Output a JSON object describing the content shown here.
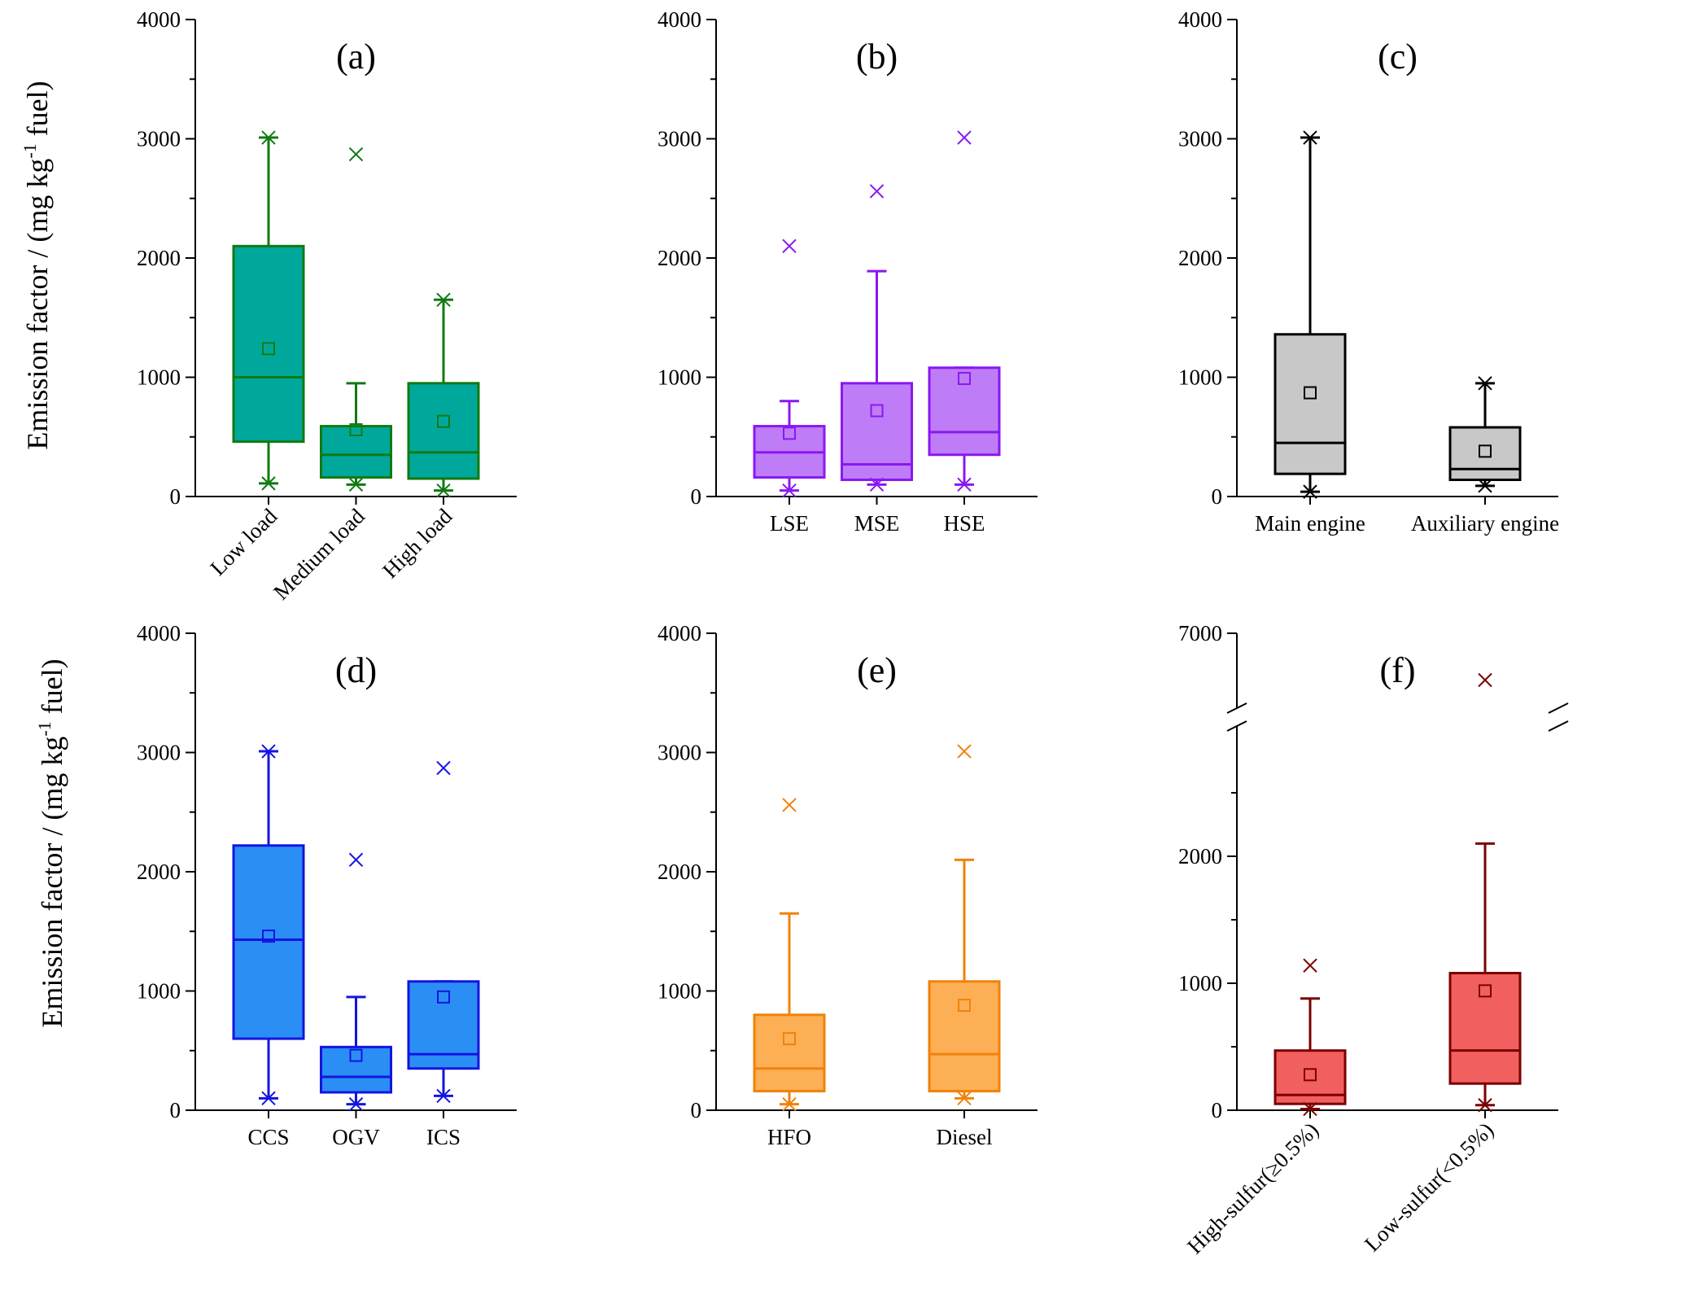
{
  "y_label": {
    "prefix": "Emission factor / (mg kg",
    "sup": "-1",
    "suffix": " fuel)"
  },
  "chart_data": [
    {
      "type": "box",
      "panel": "(a)",
      "color": "#117a11",
      "fill": "#00a89b",
      "ylim": [
        0,
        4000
      ],
      "yticks": [
        "0",
        "1000",
        "2000",
        "3000",
        "4000"
      ],
      "ytick_values": [
        0,
        1000,
        2000,
        3000,
        4000
      ],
      "rotate_labels": true,
      "boxes": [
        {
          "label": "Low load",
          "whisker_low": 110,
          "q1": 460,
          "median": 1000,
          "q3": 2100,
          "whisker_high": 3010,
          "mean": 1240,
          "min_marker": 110,
          "max_marker": 3010,
          "outliers": []
        },
        {
          "label": "Medium load",
          "whisker_low": 100,
          "q1": 160,
          "median": 350,
          "q3": 590,
          "whisker_high": 950,
          "mean": 560,
          "min_marker": 100,
          "max_marker": null,
          "outliers": [
            2870
          ]
        },
        {
          "label": "High load",
          "whisker_low": 50,
          "q1": 150,
          "median": 370,
          "q3": 950,
          "whisker_high": 1650,
          "mean": 630,
          "min_marker": 50,
          "max_marker": 1650,
          "outliers": []
        }
      ]
    },
    {
      "type": "box",
      "panel": "(b)",
      "color": "#8a18f0",
      "fill": "#bf7cf7",
      "ylim": [
        0,
        4000
      ],
      "yticks": [
        "0",
        "1000",
        "2000",
        "3000",
        "4000"
      ],
      "ytick_values": [
        0,
        1000,
        2000,
        3000,
        4000
      ],
      "rotate_labels": false,
      "boxes": [
        {
          "label": "LSE",
          "whisker_low": 50,
          "q1": 160,
          "median": 370,
          "q3": 590,
          "whisker_high": 800,
          "mean": 530,
          "min_marker": 50,
          "max_marker": null,
          "outliers": [
            2100
          ]
        },
        {
          "label": "MSE",
          "whisker_low": 100,
          "q1": 140,
          "median": 270,
          "q3": 950,
          "whisker_high": 1890,
          "mean": 720,
          "min_marker": 100,
          "max_marker": null,
          "outliers": [
            2560
          ]
        },
        {
          "label": "HSE",
          "whisker_low": 100,
          "q1": 350,
          "median": 540,
          "q3": 1080,
          "whisker_high": 1080,
          "mean": 990,
          "min_marker": 100,
          "max_marker": null,
          "outliers": [
            3010
          ]
        }
      ]
    },
    {
      "type": "box",
      "panel": "(c)",
      "color": "#000000",
      "fill": "#c8c8c8",
      "ylim": [
        0,
        4000
      ],
      "yticks": [
        "0",
        "1000",
        "2000",
        "3000",
        "4000"
      ],
      "ytick_values": [
        0,
        1000,
        2000,
        3000,
        4000
      ],
      "rotate_labels": false,
      "boxes": [
        {
          "label": "Main engine",
          "whisker_low": 40,
          "q1": 190,
          "median": 450,
          "q3": 1360,
          "whisker_high": 3010,
          "mean": 870,
          "min_marker": 40,
          "max_marker": 3010,
          "outliers": []
        },
        {
          "label": "Auxiliary engine",
          "whisker_low": 90,
          "q1": 140,
          "median": 230,
          "q3": 580,
          "whisker_high": 950,
          "mean": 380,
          "min_marker": 90,
          "max_marker": 950,
          "outliers": []
        }
      ]
    },
    {
      "type": "box",
      "panel": "(d)",
      "color": "#1414e0",
      "fill": "#2b8ef5",
      "ylim": [
        0,
        4000
      ],
      "yticks": [
        "0",
        "1000",
        "2000",
        "3000",
        "4000"
      ],
      "ytick_values": [
        0,
        1000,
        2000,
        3000,
        4000
      ],
      "rotate_labels": false,
      "boxes": [
        {
          "label": "CCS",
          "whisker_low": 100,
          "q1": 600,
          "median": 1430,
          "q3": 2220,
          "whisker_high": 3010,
          "mean": 1460,
          "min_marker": 100,
          "max_marker": 3010,
          "outliers": []
        },
        {
          "label": "OGV",
          "whisker_low": 50,
          "q1": 150,
          "median": 280,
          "q3": 530,
          "whisker_high": 950,
          "mean": 460,
          "min_marker": 50,
          "max_marker": null,
          "outliers": [
            2100
          ]
        },
        {
          "label": "ICS",
          "whisker_low": 120,
          "q1": 350,
          "median": 470,
          "q3": 1080,
          "whisker_high": 1080,
          "mean": 950,
          "min_marker": 120,
          "max_marker": null,
          "outliers": [
            2870
          ]
        }
      ]
    },
    {
      "type": "box",
      "panel": "(e)",
      "color": "#f0820a",
      "fill": "#fdaf55",
      "ylim": [
        0,
        4000
      ],
      "yticks": [
        "0",
        "1000",
        "2000",
        "3000",
        "4000"
      ],
      "ytick_values": [
        0,
        1000,
        2000,
        3000,
        4000
      ],
      "rotate_labels": false,
      "boxes": [
        {
          "label": "HFO",
          "whisker_low": 50,
          "q1": 160,
          "median": 350,
          "q3": 800,
          "whisker_high": 1650,
          "mean": 600,
          "min_marker": 50,
          "max_marker": null,
          "outliers": [
            2560
          ]
        },
        {
          "label": "Diesel",
          "whisker_low": 100,
          "q1": 160,
          "median": 470,
          "q3": 1080,
          "whisker_high": 2100,
          "mean": 880,
          "min_marker": 100,
          "max_marker": null,
          "outliers": [
            3010
          ]
        }
      ]
    },
    {
      "type": "box",
      "panel": "(f)",
      "color": "#7a0000",
      "fill": "#f25f5f",
      "ylim": [
        0,
        7000
      ],
      "axis_break": [
        2800,
        5400
      ],
      "yticks": [
        "0",
        "1000",
        "2000",
        "7000"
      ],
      "ytick_values": [
        0,
        1000,
        2000,
        7000
      ],
      "rotate_labels": true,
      "boxes": [
        {
          "label": "High-sulfur(≥0.5%)",
          "whisker_low": 10,
          "q1": 50,
          "median": 120,
          "q3": 470,
          "whisker_high": 880,
          "mean": 280,
          "min_marker": 10,
          "max_marker": null,
          "outliers": [
            1140
          ]
        },
        {
          "label": "Low-sulfur(<0.5%)",
          "whisker_low": 40,
          "q1": 210,
          "median": 470,
          "q3": 1080,
          "whisker_high": 2100,
          "mean": 940,
          "min_marker": 40,
          "max_marker": null,
          "outliers": [
            6000
          ]
        }
      ]
    }
  ]
}
